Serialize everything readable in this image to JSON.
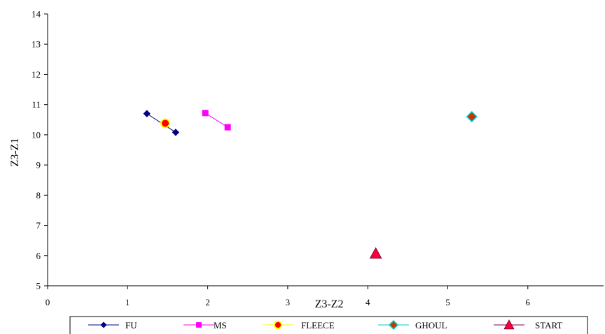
{
  "chart_data": {
    "type": "scatter",
    "xlabel": "Z3-Z2",
    "ylabel": "Z3-Z1",
    "xlim": [
      0,
      7
    ],
    "ylim": [
      5,
      14
    ],
    "x_ticks": [
      0,
      1,
      2,
      3,
      4,
      5,
      6
    ],
    "y_ticks": [
      5,
      6,
      7,
      8,
      9,
      10,
      11,
      12,
      13,
      14
    ],
    "grid": false,
    "legend_position": "bottom",
    "series": [
      {
        "name": "FU",
        "marker": "diamond",
        "line": true,
        "color": "#000080",
        "fill": "#000080",
        "points": [
          {
            "x": 1.24,
            "y": 10.7
          },
          {
            "x": 1.6,
            "y": 10.08
          }
        ]
      },
      {
        "name": "MS",
        "marker": "square",
        "line": true,
        "color": "#FF00FF",
        "fill": "#FF00FF",
        "points": [
          {
            "x": 1.97,
            "y": 10.72
          },
          {
            "x": 2.25,
            "y": 10.25
          }
        ]
      },
      {
        "name": "FLEECE",
        "marker": "circle",
        "line": false,
        "color": "#FFFF00",
        "fill": "#FF0000",
        "points": [
          {
            "x": 1.47,
            "y": 10.38
          }
        ]
      },
      {
        "name": "GHOUL",
        "marker": "diamond",
        "line": false,
        "color": "#00CCCC",
        "fill": "#CC3300",
        "points": [
          {
            "x": 5.3,
            "y": 10.6
          }
        ]
      },
      {
        "name": "START",
        "marker": "triangle",
        "line": false,
        "color": "#800040",
        "fill": "#FF0033",
        "points": [
          {
            "x": 4.1,
            "y": 6.07
          }
        ]
      }
    ]
  }
}
